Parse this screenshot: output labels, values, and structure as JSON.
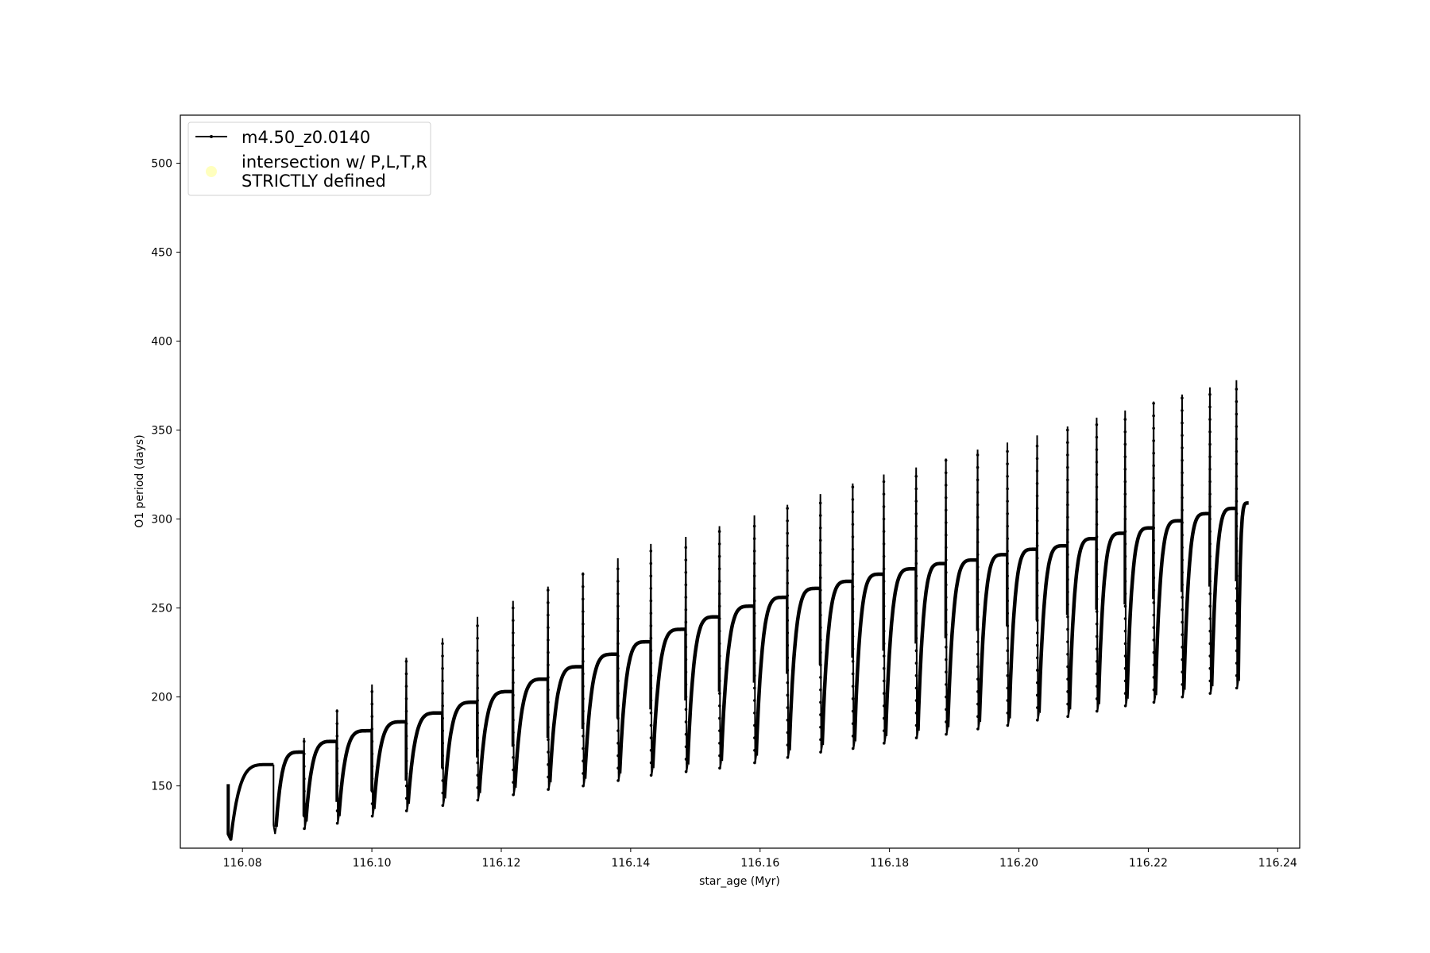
{
  "chart_data": {
    "type": "line",
    "title": "",
    "xlabel": "star_age (Myr)",
    "ylabel": "O1 period (days)",
    "xlim": [
      116.0704,
      116.2434
    ],
    "ylim": [
      115,
      527
    ],
    "xticks": [
      116.08,
      116.1,
      116.12,
      116.14,
      116.16,
      116.18,
      116.2,
      116.22,
      116.24
    ],
    "xtick_labels": [
      "116.08",
      "116.10",
      "116.12",
      "116.14",
      "116.16",
      "116.18",
      "116.20",
      "116.22",
      "116.24"
    ],
    "yticks": [
      150,
      200,
      250,
      300,
      350,
      400,
      450,
      500
    ],
    "ytick_labels": [
      "150",
      "200",
      "250",
      "300",
      "350",
      "400",
      "450",
      "500"
    ],
    "grid": false,
    "legend": {
      "placement": "top-left",
      "entries": [
        {
          "label": "m4.50_z0.0140",
          "color": "#000000",
          "marker": "line-dot"
        },
        {
          "label": "intersection w/ P,L,T,R\nSTRICTLY defined",
          "label_lines": [
            "intersection w/ P,L,T,R",
            "STRICTLY defined"
          ],
          "color": "#ffffb3",
          "marker": "circle"
        }
      ]
    },
    "series": [
      {
        "name": "m4.50_z0.0140",
        "color": "#000000",
        "start": {
          "age": 116.0778,
          "period": 151,
          "min_period": 120
        },
        "end": {
          "age": 116.2355,
          "period": 309
        },
        "pulses": {
          "age": [
            116.0848,
            116.0894,
            116.0945,
            116.0999,
            116.1052,
            116.1108,
            116.1162,
            116.1217,
            116.1271,
            116.1325,
            116.1379,
            116.143,
            116.1484,
            116.1536,
            116.159,
            116.1641,
            116.1692,
            116.1742,
            116.179,
            116.184,
            116.1886,
            116.1935,
            116.1981,
            116.2027,
            116.2074,
            116.2119,
            116.2163,
            116.2207,
            116.2251,
            116.2294,
            116.2335
          ],
          "period_before": [
            162,
            169,
            175,
            181,
            186,
            191,
            197,
            203,
            210,
            217,
            224,
            231,
            238,
            245,
            251,
            256,
            261,
            265,
            269,
            272,
            275,
            277,
            280,
            283,
            285,
            289,
            292,
            295,
            299,
            303,
            306
          ],
          "period_step": [
            128,
            133,
            141,
            147,
            153,
            160,
            166,
            172,
            177,
            182,
            188,
            193,
            198,
            203,
            208,
            213,
            218,
            222,
            226,
            230,
            233,
            237,
            240,
            243,
            246,
            249,
            252,
            255,
            259,
            262,
            265
          ],
          "period_peak": [
            null,
            177,
            193,
            207,
            222,
            233,
            245,
            254,
            262,
            270,
            278,
            286,
            290,
            296,
            302,
            308,
            314,
            320,
            325,
            329,
            334,
            339,
            343,
            347,
            352,
            357,
            361,
            366,
            370,
            374,
            378
          ],
          "period_min": [
            123,
            126,
            129,
            133,
            136,
            139,
            142,
            145,
            148,
            150,
            153,
            156,
            158,
            160,
            163,
            166,
            169,
            171,
            174,
            177,
            179,
            182,
            184,
            187,
            189,
            192,
            195,
            197,
            200,
            202,
            205
          ]
        }
      }
    ]
  }
}
